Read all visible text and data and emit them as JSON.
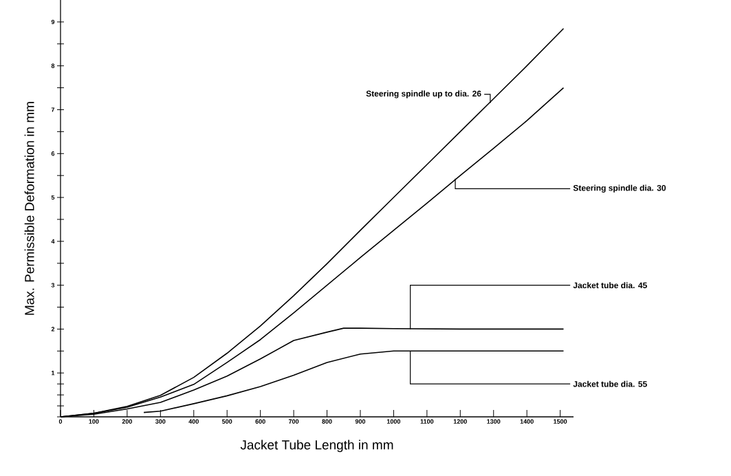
{
  "chart_data": {
    "type": "line",
    "xlabel": "Jacket Tube Length in mm",
    "ylabel": "Max. Permissible Deformation in mm",
    "xlim": [
      0,
      1540
    ],
    "ylim": [
      0,
      9.5
    ],
    "xticks": [
      0,
      100,
      200,
      300,
      400,
      500,
      600,
      700,
      800,
      900,
      1000,
      1100,
      1200,
      1300,
      1400,
      1500
    ],
    "yticks": [
      {
        "value": 0,
        "label": null
      },
      {
        "value": 0.25,
        "label": null
      },
      {
        "value": 0.5,
        "label": null
      },
      {
        "value": 0.75,
        "label": null
      },
      1,
      {
        "value": 1.5,
        "label": null
      },
      2,
      {
        "value": 2.5,
        "label": null
      },
      3,
      {
        "value": 3.5,
        "label": null
      },
      4,
      {
        "value": 4.5,
        "label": null
      },
      5,
      {
        "value": 5.5,
        "label": null
      },
      6,
      {
        "value": 6.5,
        "label": null
      },
      7,
      {
        "value": 7.5,
        "label": null
      },
      8,
      {
        "value": 8.5,
        "label": null
      },
      9
    ],
    "series": [
      {
        "name": "Steering spindle up to dia. 26",
        "color": "#000000",
        "x": [
          0,
          100,
          200,
          300,
          400,
          500,
          600,
          700,
          800,
          900,
          1000,
          1100,
          1200,
          1300,
          1400,
          1510
        ],
        "values": [
          0,
          0.08,
          0.24,
          0.49,
          0.9,
          1.45,
          2.07,
          2.76,
          3.49,
          4.25,
          5.0,
          5.75,
          6.5,
          7.25,
          8.0,
          8.85
        ]
      },
      {
        "name": "Steering spindle dia. 30",
        "color": "#000000",
        "x": [
          0,
          100,
          200,
          300,
          400,
          500,
          600,
          700,
          800,
          900,
          1000,
          1100,
          1200,
          1300,
          1400,
          1510
        ],
        "values": [
          0,
          0.08,
          0.22,
          0.45,
          0.74,
          1.24,
          1.76,
          2.37,
          3.0,
          3.63,
          4.25,
          4.87,
          5.5,
          6.12,
          6.75,
          7.5
        ]
      },
      {
        "name": "Jacket tube dia. 45",
        "color": "#000000",
        "x": [
          0,
          100,
          200,
          300,
          400,
          500,
          600,
          700,
          800,
          850,
          900,
          1000,
          1200,
          1510
        ],
        "values": [
          0,
          0.06,
          0.18,
          0.33,
          0.61,
          0.93,
          1.32,
          1.74,
          1.93,
          2.02,
          2.02,
          2.01,
          2.0,
          2.0
        ]
      },
      {
        "name": "Jacket tube dia. 55",
        "color": "#000000",
        "x": [
          250,
          300,
          400,
          500,
          600,
          700,
          800,
          900,
          1000,
          1200,
          1510
        ],
        "values": [
          0.1,
          0.13,
          0.3,
          0.48,
          0.69,
          0.95,
          1.24,
          1.43,
          1.5,
          1.5,
          1.5
        ]
      }
    ]
  }
}
